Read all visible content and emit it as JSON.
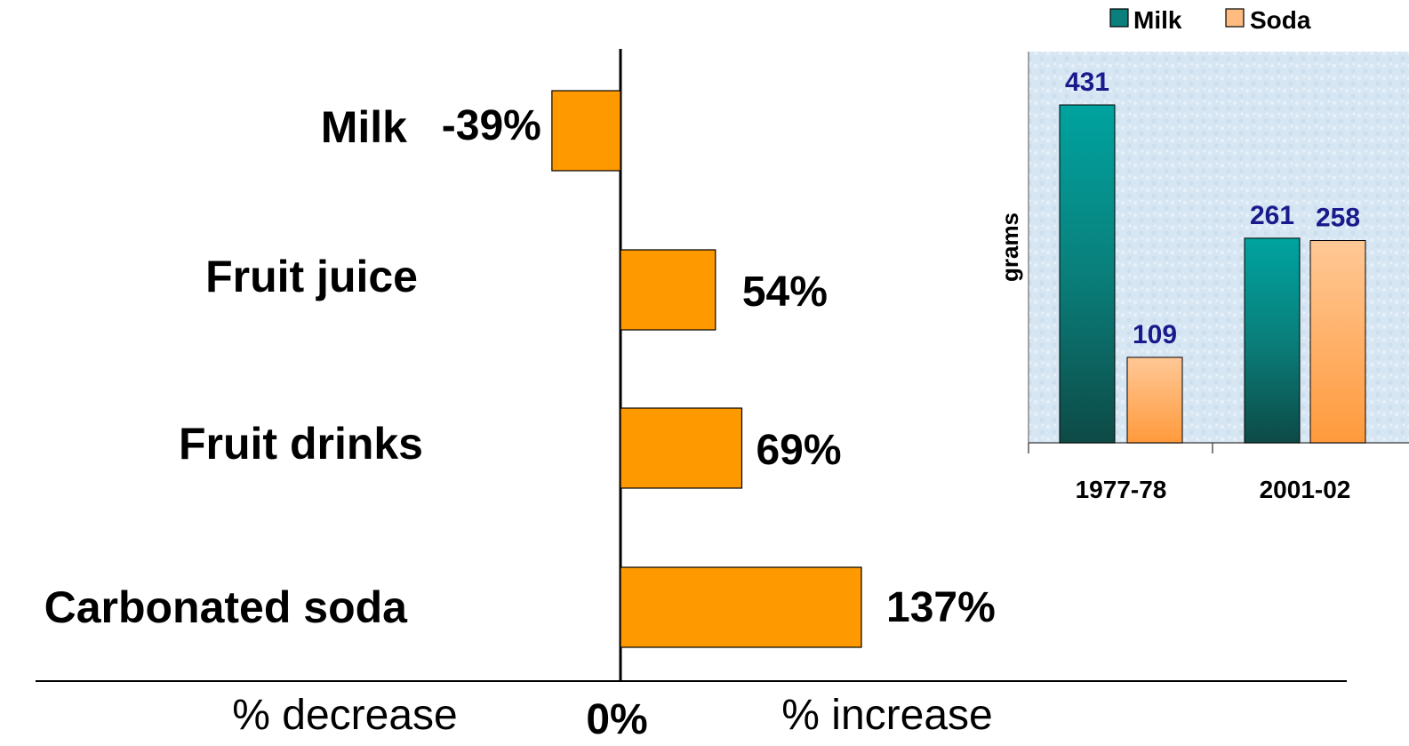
{
  "chart_data": [
    {
      "type": "bar",
      "orientation": "horizontal",
      "categories": [
        "Milk",
        "Fruit juice",
        "Fruit drinks",
        "Carbonated soda"
      ],
      "values": [
        -39,
        54,
        69,
        137
      ],
      "value_labels": [
        "-39%",
        "54%",
        "69%",
        "137%"
      ],
      "axis_labels": {
        "left": "% decrease",
        "center": "0%",
        "right": "% increase"
      },
      "bar_color": "#ff9900"
    },
    {
      "type": "bar",
      "categories": [
        "1977-78",
        "2001-02"
      ],
      "series": [
        {
          "name": "Milk",
          "values": [
            431,
            261
          ],
          "color": "#009999"
        },
        {
          "name": "Soda",
          "values": [
            109,
            258
          ],
          "color": "#ffbb80"
        }
      ],
      "ylabel": "grams",
      "ylim": [
        0,
        500
      ],
      "legend_position": "top",
      "background": "#dceaf5"
    }
  ]
}
